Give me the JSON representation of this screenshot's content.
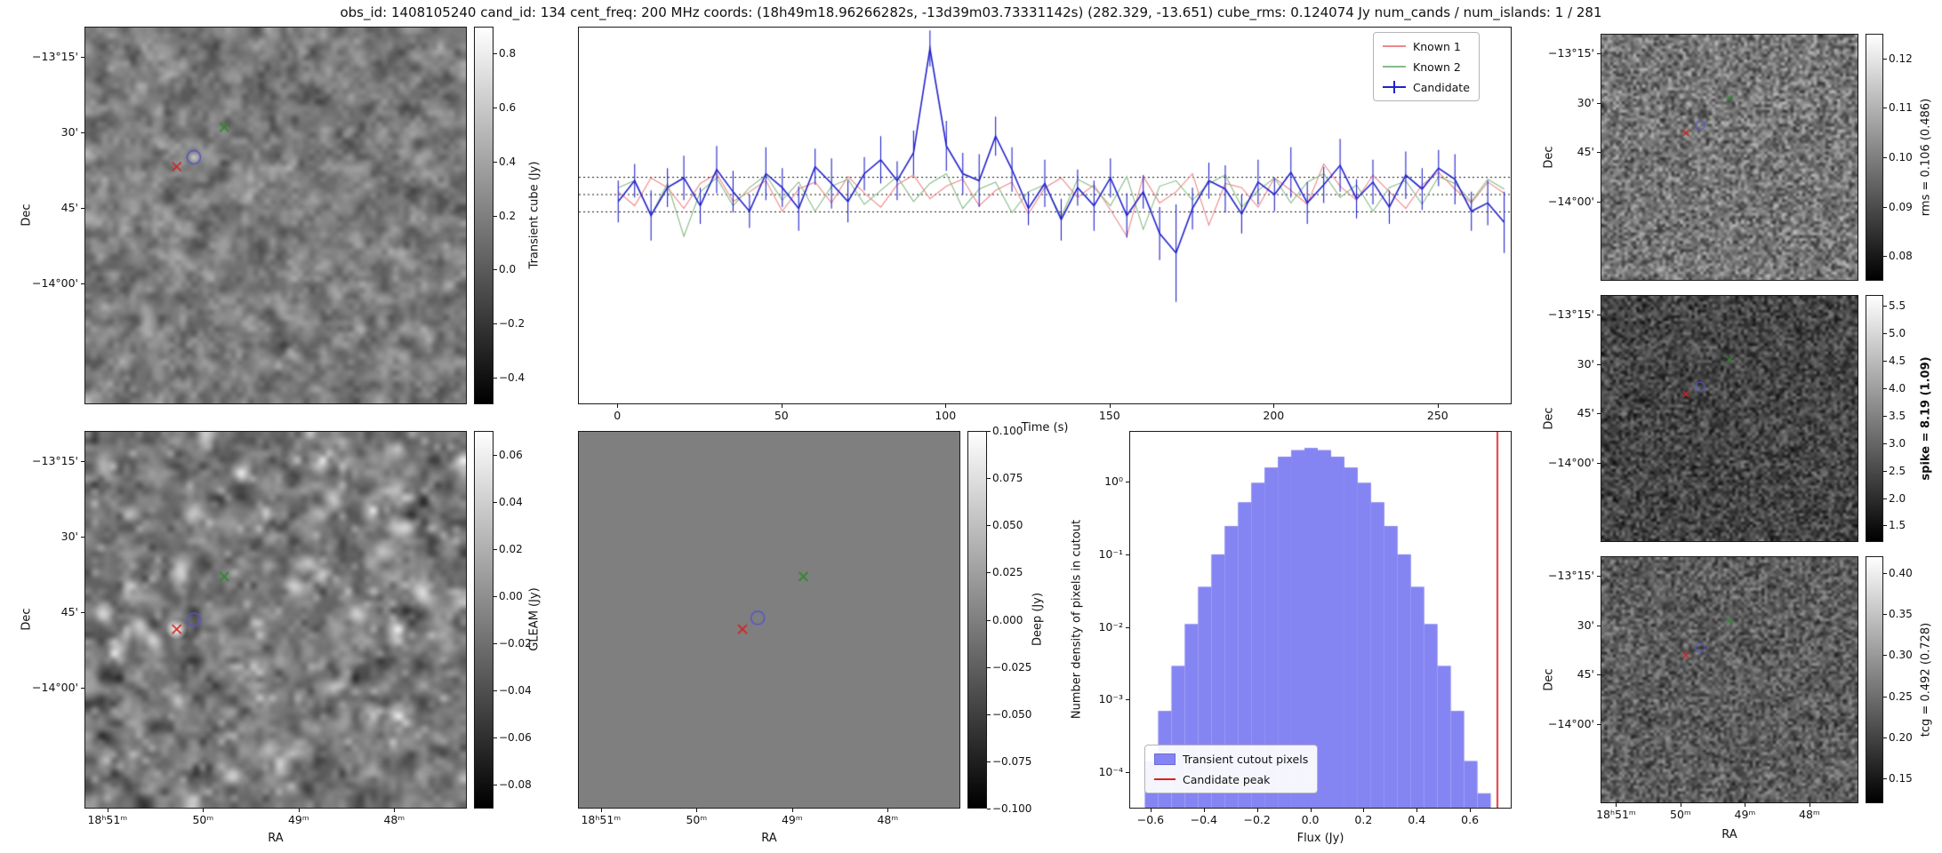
{
  "title": "obs_id: 1408105240 cand_id: 134 cent_freq: 200 MHz coords: (18h49m18.96266282s, -13d39m03.73331142s) (282.329, -13.651) cube_rms: 0.124074 Jy num_cands / num_islands: 1 / 281",
  "axes": {
    "dec_label": "Dec",
    "ra_label": "RA",
    "dec_ticks": [
      "−13°15'",
      "30'",
      "45'",
      "−14°00'"
    ],
    "ra_ticks": [
      "18ʰ51ᵐ",
      "50ᵐ",
      "49ᵐ",
      "48ᵐ"
    ]
  },
  "colorbars": {
    "transient": {
      "label": "Transient cube (Jy)",
      "vmin": -0.5,
      "vmax": 0.9,
      "bold": false,
      "tick_values": [
        0.8,
        0.6,
        0.4,
        0.2,
        0.0,
        -0.2,
        -0.4
      ],
      "tick_labels": [
        "0.8",
        "0.6",
        "0.4",
        "0.2",
        "0.0",
        "−0.2",
        "−0.4"
      ]
    },
    "gleam": {
      "label": "GLEAM (Jy)",
      "vmin": -0.09,
      "vmax": 0.07,
      "bold": false,
      "tick_values": [
        0.06,
        0.04,
        0.02,
        0.0,
        -0.02,
        -0.04,
        -0.06,
        -0.08
      ],
      "tick_labels": [
        "0.06",
        "0.04",
        "0.02",
        "0.00",
        "−0.02",
        "−0.04",
        "−0.06",
        "−0.08"
      ]
    },
    "deep": {
      "label": "Deep (Jy)",
      "vmin": -0.1,
      "vmax": 0.1,
      "bold": false,
      "tick_values": [
        0.1,
        0.075,
        0.05,
        0.025,
        0.0,
        -0.025,
        -0.05,
        -0.075,
        -0.1
      ],
      "tick_labels": [
        "0.100",
        "0.075",
        "0.050",
        "0.025",
        "0.000",
        "−0.025",
        "−0.050",
        "−0.075",
        "−0.100"
      ]
    },
    "rms": {
      "label": "rms = 0.106 (0.486)",
      "vmin": 0.075,
      "vmax": 0.125,
      "bold": false,
      "tick_values": [
        0.12,
        0.11,
        0.1,
        0.09,
        0.08
      ],
      "tick_labels": [
        "0.12",
        "0.11",
        "0.10",
        "0.09",
        "0.08"
      ]
    },
    "spike": {
      "label": "spike = 8.19 (1.09)",
      "vmin": 1.2,
      "vmax": 5.7,
      "bold": true,
      "tick_values": [
        5.5,
        5.0,
        4.5,
        4.0,
        3.5,
        3.0,
        2.5,
        2.0,
        1.5
      ],
      "tick_labels": [
        "5.5",
        "5.0",
        "4.5",
        "4.0",
        "3.5",
        "3.0",
        "2.5",
        "2.0",
        "1.5"
      ]
    },
    "tcg": {
      "label": "tcg = 0.492 (0.728)",
      "vmin": 0.12,
      "vmax": 0.42,
      "bold": false,
      "tick_values": [
        0.4,
        0.35,
        0.3,
        0.25,
        0.2,
        0.15
      ],
      "tick_labels": [
        "0.40",
        "0.35",
        "0.30",
        "0.25",
        "0.20",
        "0.15"
      ]
    }
  },
  "marker_colors": {
    "red_x": "#d62222",
    "green_x": "#2c8a2c",
    "blue_circle": "#5555cc"
  },
  "markers": {
    "transient": {
      "red_x": [
        0.24,
        0.37
      ],
      "blue_circle": [
        0.285,
        0.345
      ],
      "green_x": [
        0.365,
        0.265
      ]
    },
    "gleam": {
      "red_x": [
        0.24,
        0.525
      ],
      "blue_circle": [
        0.285,
        0.5
      ],
      "green_x": [
        0.365,
        0.385
      ]
    },
    "deep": {
      "red_x": [
        0.43,
        0.525
      ],
      "blue_circle": [
        0.47,
        0.495
      ],
      "green_x": [
        0.59,
        0.385
      ]
    },
    "right": {
      "red_x": [
        0.33,
        0.4
      ],
      "blue_circle": [
        0.385,
        0.37
      ],
      "green_x": [
        0.5,
        0.26
      ]
    }
  },
  "chart_data": [
    {
      "type": "line",
      "name": "candidate_light_curve",
      "xlabel": "Time (s)",
      "xlim": [
        -12,
        272
      ],
      "ylim": [
        -1.5,
        1.2
      ],
      "xticks": [
        0,
        50,
        100,
        150,
        200,
        250
      ],
      "xtick_labels": [
        "0",
        "50",
        "100",
        "150",
        "200",
        "250"
      ],
      "hlines": [
        0.124074,
        0.0,
        -0.124074
      ],
      "legend_position": "upper right",
      "x": [
        0,
        5,
        10,
        15,
        20,
        25,
        30,
        35,
        40,
        45,
        50,
        55,
        60,
        65,
        70,
        75,
        80,
        85,
        90,
        95,
        100,
        105,
        110,
        115,
        120,
        125,
        130,
        135,
        140,
        145,
        150,
        155,
        160,
        165,
        170,
        175,
        180,
        185,
        190,
        195,
        200,
        205,
        210,
        215,
        220,
        225,
        230,
        235,
        240,
        245,
        250,
        255,
        260,
        265,
        270
      ],
      "series": [
        {
          "name": "Known 1",
          "color": "#ee8888",
          "y": [
            0.02,
            -0.08,
            0.12,
            0.05,
            -0.1,
            0.08,
            0.15,
            -0.05,
            0.02,
            0.1,
            -0.12,
            0.04,
            0.09,
            -0.06,
            0.13,
            0.01,
            -0.09,
            0.07,
            0.14,
            -0.03,
            0.06,
            0.11,
            -0.08,
            0.03,
            0.09,
            -0.14,
            0.05,
            0.12,
            -0.02,
            0.07,
            -0.11,
            -0.3,
            0.13,
            -0.06,
            0.02,
            0.15,
            -0.22,
            0.08,
            0.05,
            -0.09,
            0.12,
            0.03,
            -0.07,
            0.22,
            0.06,
            -0.04,
            0.14,
            0.02,
            -0.1,
            0.07,
            0.16,
            0.04,
            -0.06,
            0.09,
            0.01
          ]
        },
        {
          "name": "Known 2",
          "color": "#88bb88",
          "y": [
            0.05,
            0.1,
            -0.15,
            0.08,
            -0.3,
            0.02,
            0.12,
            -0.08,
            0.05,
            0.14,
            -0.04,
            0.09,
            -0.12,
            0.06,
            0.11,
            -0.07,
            0.03,
            0.13,
            -0.05,
            0.08,
            0.15,
            -0.1,
            0.04,
            0.09,
            -0.13,
            0.02,
            0.07,
            -0.16,
            0.11,
            0.05,
            -0.08,
            0.13,
            -0.25,
            0.06,
            0.1,
            -0.04,
            0.08,
            0.14,
            -0.09,
            0.03,
            0.12,
            -0.06,
            0.09,
            0.15,
            -0.02,
            0.07,
            -0.12,
            0.05,
            0.1,
            -0.07,
            0.13,
            0.08,
            -0.05,
            0.11,
            0.04
          ]
        },
        {
          "name": "Candidate",
          "color": "#2222cc",
          "y": [
            -0.05,
            0.1,
            -0.15,
            0.05,
            0.12,
            -0.08,
            0.18,
            0.02,
            -0.12,
            0.15,
            0.05,
            -0.1,
            0.2,
            0.08,
            -0.05,
            0.15,
            0.25,
            0.1,
            0.3,
            1.05,
            0.35,
            0.15,
            0.1,
            0.42,
            0.18,
            -0.1,
            0.08,
            -0.18,
            0.05,
            -0.08,
            0.12,
            -0.15,
            0.02,
            -0.28,
            -0.42,
            -0.1,
            0.1,
            0.04,
            -0.14,
            0.09,
            0.0,
            0.16,
            -0.06,
            0.07,
            0.21,
            -0.03,
            0.09,
            -0.09,
            0.14,
            0.04,
            0.19,
            0.11,
            -0.12,
            -0.06,
            -0.2
          ],
          "yerr": [
            0.15,
            0.12,
            0.18,
            0.14,
            0.16,
            0.13,
            0.17,
            0.15,
            0.12,
            0.19,
            0.14,
            0.16,
            0.13,
            0.18,
            0.15,
            0.12,
            0.17,
            0.14,
            0.16,
            0.13,
            0.18,
            0.15,
            0.19,
            0.14,
            0.16,
            0.12,
            0.17,
            0.15,
            0.13,
            0.18,
            0.14,
            0.16,
            0.12,
            0.19,
            0.35,
            0.15,
            0.13,
            0.17,
            0.14,
            0.16,
            0.12,
            0.18,
            0.15,
            0.13,
            0.19,
            0.14,
            0.16,
            0.12,
            0.17,
            0.15,
            0.13,
            0.18,
            0.14,
            0.16,
            0.22
          ]
        }
      ]
    },
    {
      "type": "bar",
      "name": "pixel_flux_histogram",
      "xlabel": "Flux (Jy)",
      "ylabel": "Number density of pixels in cutout",
      "ylog": true,
      "xlim": [
        -0.68,
        0.75
      ],
      "ylim_log10": [
        -4.5,
        0.7
      ],
      "bar_color": "#8484f2",
      "bin_width": 0.05,
      "bin_centers": [
        -0.6,
        -0.55,
        -0.5,
        -0.45,
        -0.4,
        -0.35,
        -0.3,
        -0.25,
        -0.2,
        -0.15,
        -0.1,
        -0.05,
        0.0,
        0.05,
        0.1,
        0.15,
        0.2,
        0.25,
        0.3,
        0.35,
        0.4,
        0.45,
        0.5,
        0.55,
        0.6,
        0.65
      ],
      "values": [
        0.00014,
        0.00069,
        0.0029,
        0.011,
        0.036,
        0.101,
        0.249,
        0.532,
        0.99,
        1.61,
        2.27,
        2.8,
        3.0,
        2.8,
        2.27,
        1.61,
        0.99,
        0.532,
        0.249,
        0.101,
        0.036,
        0.011,
        0.0029,
        0.00069,
        0.00014,
        5e-05
      ],
      "xticks": [
        -0.6,
        -0.4,
        -0.2,
        0.0,
        0.2,
        0.4,
        0.6
      ],
      "xtick_labels": [
        "−0.6",
        "−0.4",
        "−0.2",
        "0.0",
        "0.2",
        "0.4",
        "0.6"
      ],
      "ytick_log10": [
        0,
        -1,
        -2,
        -3,
        -4
      ],
      "ytick_labels": [
        "10⁰",
        "10⁻¹",
        "10⁻²",
        "10⁻³",
        "10⁻⁴"
      ],
      "vline": {
        "x": 0.7,
        "color": "#e02020",
        "label": "Candidate peak"
      },
      "legend": [
        "Transient cutout pixels",
        "Candidate peak"
      ]
    },
    {
      "type": "heatmap",
      "name": "transient_cube_cutout",
      "colorbar": "transient",
      "content": "correlated grayscale noise cutout with candidate and known-source markers"
    },
    {
      "type": "heatmap",
      "name": "gleam_cutout",
      "colorbar": "gleam",
      "content": "GLEAM sky cutout with bright sources and markers"
    },
    {
      "type": "heatmap",
      "name": "deep_cutout",
      "colorbar": "deep",
      "content": "uniform gray deep image cutout with markers"
    },
    {
      "type": "heatmap",
      "name": "rms_cutout",
      "colorbar": "rms",
      "content": "fine-grain rms noise map with markers"
    },
    {
      "type": "heatmap",
      "name": "spike_cutout",
      "colorbar": "spike",
      "content": "fine-grain spike metric map with markers"
    },
    {
      "type": "heatmap",
      "name": "tcg_cutout",
      "colorbar": "tcg",
      "content": "fine-grain tcg metric map with markers"
    }
  ]
}
